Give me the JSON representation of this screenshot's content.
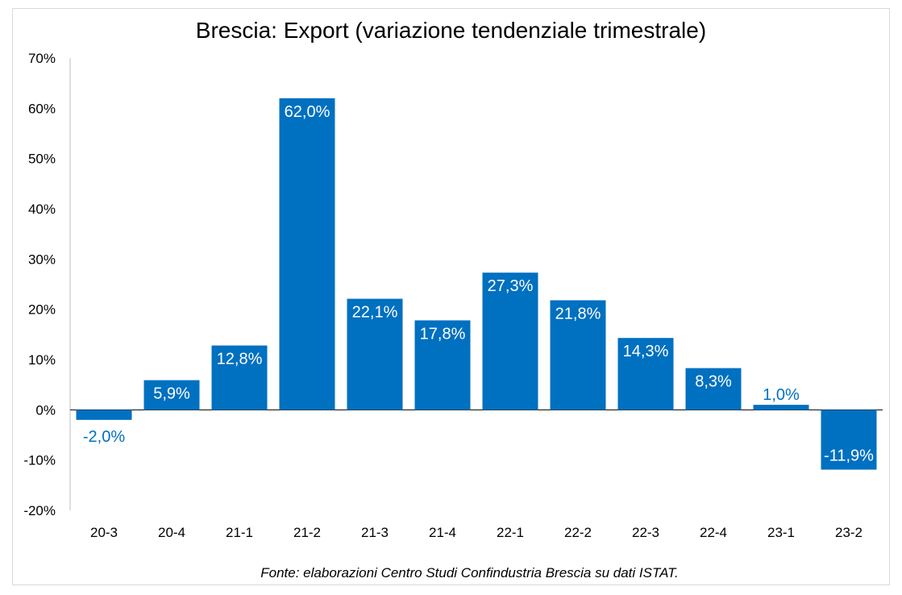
{
  "chart_data": {
    "type": "bar",
    "title": "Brescia: Export (variazione tendenziale trimestrale)",
    "source_note": "Fonte: elaborazioni Centro Studi Confindustria Brescia su dati ISTAT.",
    "categories": [
      "20-3",
      "20-4",
      "21-1",
      "21-2",
      "21-3",
      "21-4",
      "22-1",
      "22-2",
      "22-3",
      "22-4",
      "23-1",
      "23-2"
    ],
    "values": [
      -2.0,
      5.9,
      12.8,
      62.0,
      22.1,
      17.8,
      27.3,
      21.8,
      14.3,
      8.3,
      1.0,
      -11.9
    ],
    "data_labels": [
      "-2,0%",
      "5,9%",
      "12,8%",
      "62,0%",
      "22,1%",
      "17,8%",
      "27,3%",
      "21,8%",
      "14,3%",
      "8,3%",
      "1,0%",
      "-11,9%"
    ],
    "ylim": [
      -20,
      70
    ],
    "yticks": [
      -20,
      -10,
      0,
      10,
      20,
      30,
      40,
      50,
      60,
      70
    ],
    "ytick_labels": [
      "-20%",
      "-10%",
      "0%",
      "10%",
      "20%",
      "30%",
      "40%",
      "50%",
      "60%",
      "70%"
    ],
    "xlabel": "",
    "ylabel": "",
    "grid": false,
    "bar_color": "#0070c0",
    "label_inside_color": "#ffffff",
    "label_outside_color": "#0070c0"
  }
}
